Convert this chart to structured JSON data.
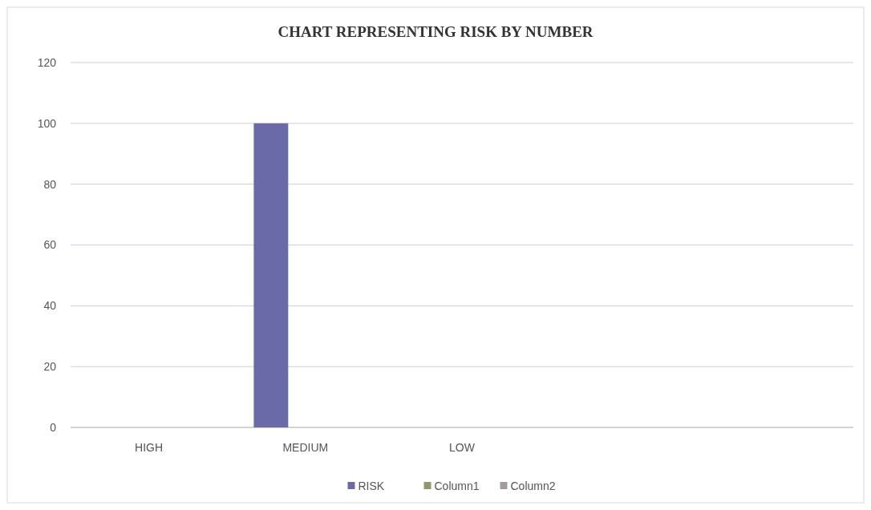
{
  "chart_data": {
    "type": "bar",
    "title": "CHART REPRESENTING RISK BY NUMBER",
    "categories": [
      "HIGH",
      "MEDIUM",
      "LOW",
      null,
      null
    ],
    "series": [
      {
        "name": "RISK",
        "color": "#6b6aa8",
        "values": [
          null,
          100,
          null,
          null,
          null
        ]
      },
      {
        "name": "Column1",
        "color": "#8f9a6a",
        "values": [
          null,
          null,
          null,
          null,
          null
        ]
      },
      {
        "name": "Column2",
        "color": "#a39a9e",
        "values": [
          null,
          null,
          null,
          null,
          null
        ]
      }
    ],
    "ylim": [
      0,
      120
    ],
    "yticks": [
      0,
      20,
      40,
      60,
      80,
      100,
      120
    ],
    "grid": "y",
    "legend": "bottom"
  }
}
